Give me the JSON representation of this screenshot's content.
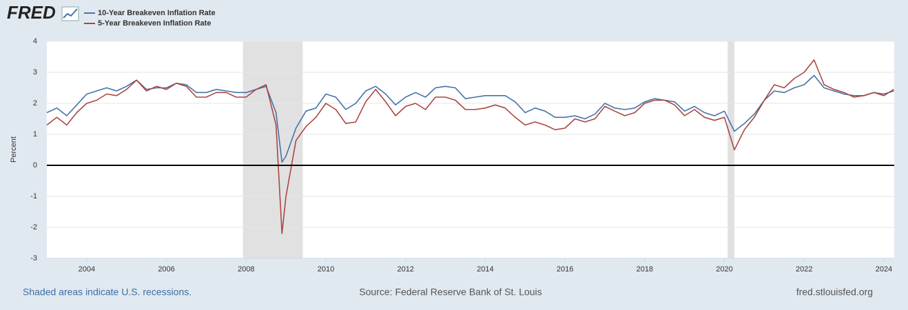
{
  "chart_data": {
    "type": "line",
    "logo": "FRED",
    "ylabel": "Percent",
    "x": [
      2003.0,
      2003.25,
      2003.5,
      2003.75,
      2004.0,
      2004.25,
      2004.5,
      2004.75,
      2005.0,
      2005.25,
      2005.5,
      2005.75,
      2006.0,
      2006.25,
      2006.5,
      2006.75,
      2007.0,
      2007.25,
      2007.5,
      2007.75,
      2008.0,
      2008.25,
      2008.5,
      2008.75,
      2008.9,
      2009.0,
      2009.25,
      2009.5,
      2009.75,
      2010.0,
      2010.25,
      2010.5,
      2010.75,
      2011.0,
      2011.25,
      2011.5,
      2011.75,
      2012.0,
      2012.25,
      2012.5,
      2012.75,
      2013.0,
      2013.25,
      2013.5,
      2013.75,
      2014.0,
      2014.25,
      2014.5,
      2014.75,
      2015.0,
      2015.25,
      2015.5,
      2015.75,
      2016.0,
      2016.25,
      2016.5,
      2016.75,
      2017.0,
      2017.25,
      2017.5,
      2017.75,
      2018.0,
      2018.25,
      2018.5,
      2018.75,
      2019.0,
      2019.25,
      2019.5,
      2019.75,
      2020.0,
      2020.25,
      2020.5,
      2020.75,
      2021.0,
      2021.25,
      2021.5,
      2021.75,
      2022.0,
      2022.25,
      2022.5,
      2022.75,
      2023.0,
      2023.25,
      2023.5,
      2023.75,
      2024.0,
      2024.25
    ],
    "series": [
      {
        "name": "10-Year Breakeven Inflation Rate",
        "color": "#4572a7",
        "values": [
          1.7,
          1.85,
          1.6,
          1.95,
          2.3,
          2.4,
          2.5,
          2.4,
          2.55,
          2.75,
          2.45,
          2.5,
          2.5,
          2.65,
          2.6,
          2.35,
          2.35,
          2.45,
          2.4,
          2.35,
          2.35,
          2.45,
          2.55,
          1.7,
          0.1,
          0.3,
          1.2,
          1.75,
          1.85,
          2.3,
          2.2,
          1.8,
          2.0,
          2.4,
          2.55,
          2.3,
          1.95,
          2.2,
          2.35,
          2.2,
          2.5,
          2.55,
          2.5,
          2.15,
          2.2,
          2.25,
          2.25,
          2.25,
          2.05,
          1.7,
          1.85,
          1.75,
          1.55,
          1.55,
          1.6,
          1.5,
          1.65,
          2.0,
          1.85,
          1.8,
          1.85,
          2.05,
          2.15,
          2.1,
          2.05,
          1.75,
          1.9,
          1.7,
          1.6,
          1.75,
          1.1,
          1.35,
          1.65,
          2.1,
          2.4,
          2.35,
          2.5,
          2.6,
          2.9,
          2.5,
          2.4,
          2.3,
          2.25,
          2.25,
          2.35,
          2.3,
          2.4
        ]
      },
      {
        "name": "5-Year Breakeven Inflation Rate",
        "color": "#aa4643",
        "values": [
          1.3,
          1.55,
          1.3,
          1.7,
          2.0,
          2.1,
          2.3,
          2.25,
          2.45,
          2.75,
          2.4,
          2.55,
          2.45,
          2.65,
          2.55,
          2.2,
          2.2,
          2.35,
          2.35,
          2.2,
          2.2,
          2.45,
          2.6,
          1.3,
          -2.2,
          -1.0,
          0.8,
          1.25,
          1.55,
          2.0,
          1.8,
          1.35,
          1.4,
          2.05,
          2.45,
          2.05,
          1.6,
          1.9,
          2.0,
          1.8,
          2.2,
          2.2,
          2.1,
          1.8,
          1.8,
          1.85,
          1.95,
          1.85,
          1.55,
          1.3,
          1.4,
          1.3,
          1.15,
          1.2,
          1.5,
          1.4,
          1.5,
          1.9,
          1.75,
          1.6,
          1.7,
          2.0,
          2.1,
          2.1,
          1.95,
          1.6,
          1.8,
          1.55,
          1.45,
          1.55,
          0.5,
          1.15,
          1.55,
          2.1,
          2.6,
          2.5,
          2.8,
          3.0,
          3.4,
          2.6,
          2.45,
          2.35,
          2.2,
          2.25,
          2.35,
          2.25,
          2.45
        ]
      }
    ],
    "recessions": [
      [
        2007.92,
        2009.42
      ],
      [
        2020.08,
        2020.25
      ]
    ],
    "xlim": [
      2003.0,
      2024.26
    ],
    "xticks": [
      2004,
      2006,
      2008,
      2010,
      2012,
      2014,
      2016,
      2018,
      2020,
      2022,
      2024
    ],
    "ylim": [
      -3,
      4
    ],
    "yticks": [
      -3,
      -2,
      -1,
      0,
      1,
      2,
      3,
      4
    ],
    "grid": true,
    "recession_note": "Shaded areas indicate U.S. recessions.",
    "source": "Source: Federal Reserve Bank of St. Louis",
    "site": "fred.stlouisfed.org"
  }
}
